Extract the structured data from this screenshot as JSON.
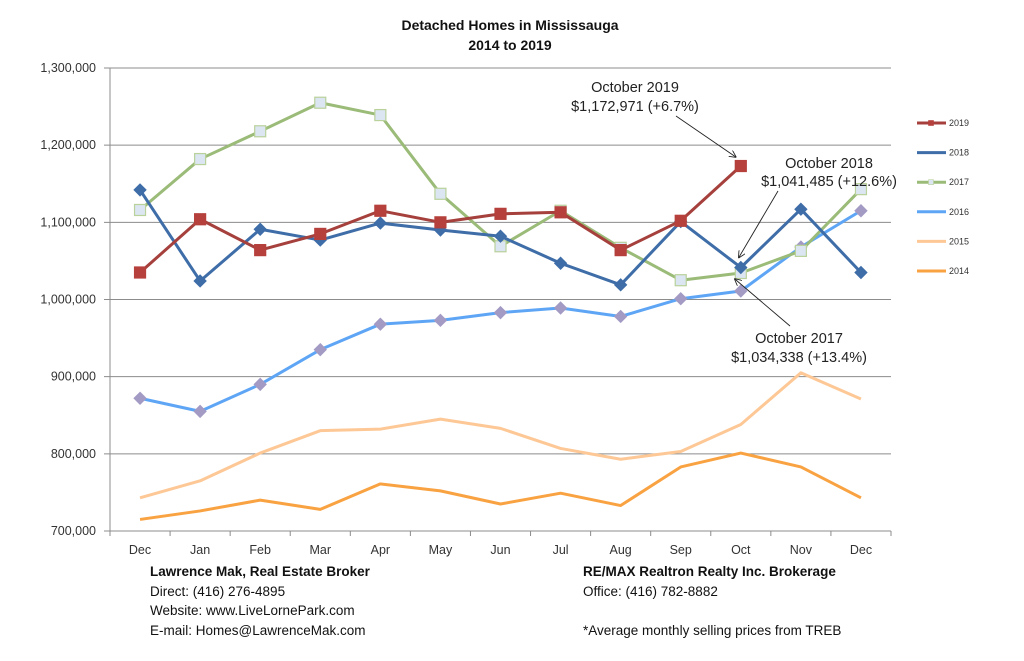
{
  "chart_data": {
    "type": "line",
    "title": "Detached Homes in Mississauga",
    "subtitle": "2014 to 2019",
    "xlabel": "",
    "ylabel": "",
    "categories": [
      "Dec",
      "Jan",
      "Feb",
      "Mar",
      "Apr",
      "May",
      "Jun",
      "Jul",
      "Aug",
      "Sep",
      "Oct",
      "Nov",
      "Dec"
    ],
    "ylim": [
      700000,
      1300000
    ],
    "yticks": [
      700000,
      800000,
      900000,
      1000000,
      1100000,
      1200000,
      1300000
    ],
    "ytick_labels": [
      "700,000",
      "800,000",
      "900,000",
      "1,000,000",
      "1,100,000",
      "1,200,000",
      "1,300,000"
    ],
    "grid": "horizontal",
    "legend_position": "right",
    "series": [
      {
        "name": "2019",
        "color": "#A5403C",
        "marker": "square",
        "marker_fill": "#B5403C",
        "marker_stroke": "#B5403C",
        "values": [
          1035000,
          1104000,
          1064000,
          1085000,
          1115000,
          1100000,
          1111000,
          1113000,
          1064000,
          1102000,
          1172971,
          null,
          null
        ]
      },
      {
        "name": "2018",
        "color": "#3E6DA8",
        "marker": "diamond",
        "marker_fill": "#3E6DA8",
        "marker_stroke": "#3E6DA8",
        "values": [
          1142000,
          1024000,
          1091000,
          1077000,
          1099000,
          1090000,
          1082000,
          1047000,
          1019000,
          1101000,
          1041485,
          1117000,
          1035000
        ]
      },
      {
        "name": "2017",
        "color": "#9BBB78",
        "marker": "square",
        "marker_fill": "#DCE6F2",
        "marker_stroke": "#B9D19A",
        "values": [
          1116000,
          1182000,
          1218000,
          1255000,
          1239000,
          1137000,
          1069000,
          1115000,
          1067000,
          1025000,
          1034338,
          1063000,
          1143000
        ]
      },
      {
        "name": "2016",
        "color": "#5EA6F5",
        "marker": "diamond",
        "marker_fill": "#A39BC4",
        "marker_stroke": "#A39BC4",
        "values": [
          872000,
          855000,
          890000,
          935000,
          968000,
          973000,
          983000,
          989000,
          978000,
          1001000,
          1011000,
          1068000,
          1115000
        ]
      },
      {
        "name": "2015",
        "color": "#FDC896",
        "marker": "none",
        "marker_fill": "",
        "marker_stroke": "",
        "values": [
          743000,
          765000,
          801000,
          830000,
          832000,
          845000,
          833000,
          807000,
          793000,
          803000,
          838000,
          905000,
          871000
        ]
      },
      {
        "name": "2014",
        "color": "#F9A242",
        "marker": "none",
        "marker_fill": "",
        "marker_stroke": "",
        "values": [
          715000,
          726000,
          740000,
          728000,
          761000,
          752000,
          735000,
          749000,
          733000,
          783000,
          801000,
          783000,
          743000
        ]
      }
    ],
    "annotations": [
      {
        "series": "2019",
        "category_index": 10,
        "line1": "October 2019",
        "line2": "$1,172,971 (+6.7%)"
      },
      {
        "series": "2018",
        "category_index": 10,
        "line1": "October 2018",
        "line2": "$1,041,485 (+12.6%)"
      },
      {
        "series": "2017",
        "category_index": 10,
        "line1": "October 2017",
        "line2": "$1,034,338 (+13.4%)"
      }
    ]
  },
  "footer": {
    "left": {
      "name": "Lawrence Mak, Real Estate Broker",
      "direct": "Direct:  (416) 276-4895",
      "website": "Website:  www.LiveLornePark.com",
      "email": "E-mail:  Homes@LawrenceMak.com"
    },
    "right": {
      "brokerage": "RE/MAX Realtron Realty Inc. Brokerage",
      "office": "Office: (416) 782-8882",
      "note": "*Average monthly selling prices from TREB"
    }
  }
}
